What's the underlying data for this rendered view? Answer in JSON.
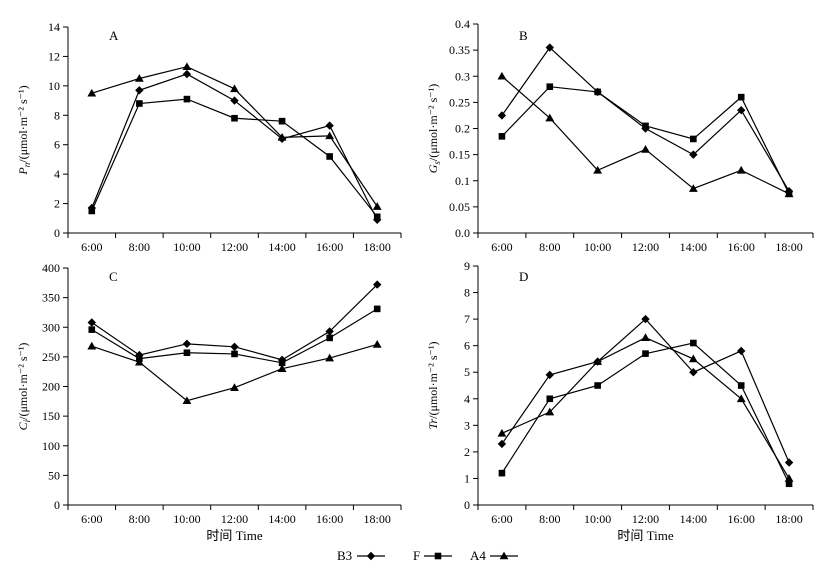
{
  "legend": [
    {
      "name": "B3",
      "marker": "diamond"
    },
    {
      "name": "F",
      "marker": "square"
    },
    {
      "name": "A4",
      "marker": "triangle"
    }
  ],
  "chart_data": [
    {
      "type": "line",
      "panel": "A",
      "ylabel_main": "P",
      "ylabel_sub": "n",
      "ylabel_rest": "/(μmol·m⁻² s⁻¹)",
      "xlabel": "",
      "categories": [
        "6:00",
        "8:00",
        "10:00",
        "12:00",
        "14:00",
        "16:00",
        "18:00"
      ],
      "ylim": [
        0,
        14
      ],
      "yticks": [
        0,
        2,
        4,
        6,
        8,
        10,
        12,
        14
      ],
      "series": [
        {
          "name": "B3",
          "values": [
            1.7,
            9.7,
            10.8,
            9.0,
            6.4,
            7.3,
            0.9
          ]
        },
        {
          "name": "F",
          "values": [
            1.5,
            8.8,
            9.1,
            7.8,
            7.6,
            5.2,
            1.1
          ]
        },
        {
          "name": "A4",
          "values": [
            9.5,
            10.5,
            11.3,
            9.8,
            6.5,
            6.6,
            1.8
          ]
        }
      ]
    },
    {
      "type": "line",
      "panel": "B",
      "ylabel_main": "G",
      "ylabel_sub": "s",
      "ylabel_rest": "/(μmol·m⁻² s⁻¹)",
      "xlabel": "",
      "categories": [
        "6:00",
        "8:00",
        "10:00",
        "12:00",
        "14:00",
        "16:00",
        "18:00"
      ],
      "ylim": [
        0,
        0.4
      ],
      "yticks": [
        "0.0",
        "0.05",
        "0.1",
        "0.15",
        "0.2",
        "0.25",
        "0.3",
        "0.35",
        "0.4"
      ],
      "series": [
        {
          "name": "B3",
          "values": [
            0.225,
            0.355,
            0.27,
            0.2,
            0.15,
            0.235,
            0.08
          ]
        },
        {
          "name": "F",
          "values": [
            0.185,
            0.28,
            0.27,
            0.205,
            0.18,
            0.26,
            0.075
          ]
        },
        {
          "name": "A4",
          "values": [
            0.3,
            0.22,
            0.12,
            0.16,
            0.085,
            0.12,
            0.075
          ]
        }
      ]
    },
    {
      "type": "line",
      "panel": "C",
      "ylabel_main": "C",
      "ylabel_sub": "i",
      "ylabel_rest": "/(μmol·m⁻² s⁻¹)",
      "xlabel": "时间 Time",
      "categories": [
        "6:00",
        "8:00",
        "10:00",
        "12:00",
        "14:00",
        "16:00",
        "18:00"
      ],
      "ylim": [
        0,
        400
      ],
      "yticks": [
        0,
        50,
        100,
        150,
        200,
        250,
        300,
        350,
        400
      ],
      "series": [
        {
          "name": "B3",
          "values": [
            308,
            253,
            272,
            267,
            245,
            293,
            372
          ]
        },
        {
          "name": "F",
          "values": [
            296,
            247,
            257,
            255,
            240,
            282,
            331
          ]
        },
        {
          "name": "A4",
          "values": [
            268,
            241,
            176,
            198,
            230,
            248,
            271
          ]
        }
      ]
    },
    {
      "type": "line",
      "panel": "D",
      "ylabel_main": "Tr",
      "ylabel_sub": "",
      "ylabel_rest": "/(μmol·m⁻² s⁻¹)",
      "xlabel": "时间 Time",
      "categories": [
        "6:00",
        "8:00",
        "10:00",
        "12:00",
        "14:00",
        "16:00",
        "18:00"
      ],
      "ylim": [
        0,
        9
      ],
      "yticks": [
        0,
        1,
        2,
        3,
        4,
        5,
        6,
        7,
        8,
        9
      ],
      "series": [
        {
          "name": "B3",
          "values": [
            2.3,
            4.9,
            5.4,
            7.0,
            5.0,
            5.8,
            1.6
          ]
        },
        {
          "name": "F",
          "values": [
            1.2,
            4.0,
            4.5,
            5.7,
            6.1,
            4.5,
            0.8
          ]
        },
        {
          "name": "A4",
          "values": [
            2.7,
            3.5,
            5.4,
            6.3,
            5.5,
            4.0,
            1.0
          ]
        }
      ]
    }
  ]
}
